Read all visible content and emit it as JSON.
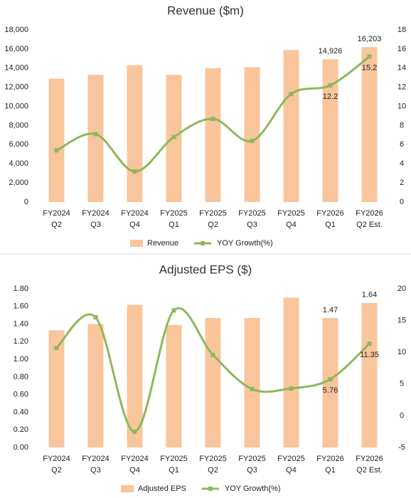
{
  "chart_data": [
    {
      "type": "combo",
      "title": "Revenue ($m)",
      "categories": [
        [
          "FY2024",
          "Q2"
        ],
        [
          "FY2024",
          "Q3"
        ],
        [
          "FY2024",
          "Q4"
        ],
        [
          "FY2025",
          "Q1"
        ],
        [
          "FY2025",
          "Q2"
        ],
        [
          "FY2025",
          "Q3"
        ],
        [
          "FY2025",
          "Q4"
        ],
        [
          "FY2026",
          "Q1"
        ],
        [
          "FY2026",
          "Q2 Est."
        ]
      ],
      "series": [
        {
          "name": "Revenue",
          "type": "bar",
          "color": "#f8c59c",
          "values": [
            12900,
            13300,
            14300,
            13300,
            14000,
            14100,
            15900,
            14926,
            16203
          ],
          "value_labels": [
            null,
            null,
            null,
            null,
            null,
            null,
            null,
            "14,926",
            "16,203"
          ]
        },
        {
          "name": "YOY Growth(%)",
          "type": "line",
          "axis": "y2",
          "color": "#8db85a",
          "values": [
            5.4,
            7.1,
            3.2,
            6.8,
            8.7,
            6.4,
            11.3,
            12.2,
            15.2
          ],
          "value_labels": [
            null,
            null,
            null,
            null,
            null,
            null,
            null,
            "12.2",
            "15.2"
          ]
        }
      ],
      "ylim": [
        0,
        18000
      ],
      "yticks": [
        0,
        {
          "value": 2000,
          "label": "2,000"
        },
        {
          "value": 4000,
          "label": "4,000"
        },
        {
          "value": 6000,
          "label": "6,000"
        },
        {
          "value": 8000,
          "label": "8,000"
        },
        {
          "value": 10000,
          "label": "10,000"
        },
        {
          "value": 12000,
          "label": "12,000"
        },
        {
          "value": 14000,
          "label": "14,000"
        },
        {
          "value": 16000,
          "label": "16,000"
        },
        {
          "value": 18000,
          "label": "18,000"
        }
      ],
      "y2lim": [
        0,
        18
      ],
      "y2ticks": [
        0,
        2,
        4,
        6,
        8,
        10,
        12,
        14,
        16,
        18
      ],
      "legend": "bottom"
    },
    {
      "type": "combo",
      "title": "Adjusted EPS ($)",
      "categories": [
        [
          "FY2024",
          "Q2"
        ],
        [
          "FY2024",
          "Q3"
        ],
        [
          "FY2024",
          "Q4"
        ],
        [
          "FY2025",
          "Q1"
        ],
        [
          "FY2025",
          "Q2"
        ],
        [
          "FY2025",
          "Q3"
        ],
        [
          "FY2025",
          "Q4"
        ],
        [
          "FY2026",
          "Q1"
        ],
        [
          "FY2026",
          "Q2 Est."
        ]
      ],
      "series": [
        {
          "name": "Adjusted EPS",
          "type": "bar",
          "color": "#f8c59c",
          "values": [
            1.33,
            1.4,
            1.62,
            1.39,
            1.47,
            1.47,
            1.7,
            1.47,
            1.64
          ],
          "value_labels": [
            null,
            null,
            null,
            null,
            null,
            null,
            null,
            "1.47",
            "1.64"
          ]
        },
        {
          "name": "YOY Growth(%)",
          "type": "line",
          "axis": "y2",
          "color": "#8db85a",
          "values": [
            10.7,
            15.5,
            -2.5,
            16.6,
            9.6,
            4.2,
            4.3,
            5.76,
            11.35
          ],
          "value_labels": [
            null,
            null,
            null,
            null,
            null,
            null,
            null,
            "5.76",
            "11.35"
          ]
        }
      ],
      "ylim": [
        0,
        1.8
      ],
      "yticks": [
        {
          "value": 0,
          "label": "0.00"
        },
        {
          "value": 0.2,
          "label": "0.20"
        },
        {
          "value": 0.4,
          "label": "0.40"
        },
        {
          "value": 0.6,
          "label": "0.60"
        },
        {
          "value": 0.8,
          "label": "0.80"
        },
        {
          "value": 1.0,
          "label": "1.00"
        },
        {
          "value": 1.2,
          "label": "1.20"
        },
        {
          "value": 1.4,
          "label": "1.40"
        },
        {
          "value": 1.6,
          "label": "1.60"
        },
        {
          "value": 1.8,
          "label": "1.80"
        }
      ],
      "y2lim": [
        -5,
        20
      ],
      "y2ticks": [
        -5,
        0,
        5,
        10,
        15,
        20
      ],
      "legend": "bottom"
    }
  ]
}
